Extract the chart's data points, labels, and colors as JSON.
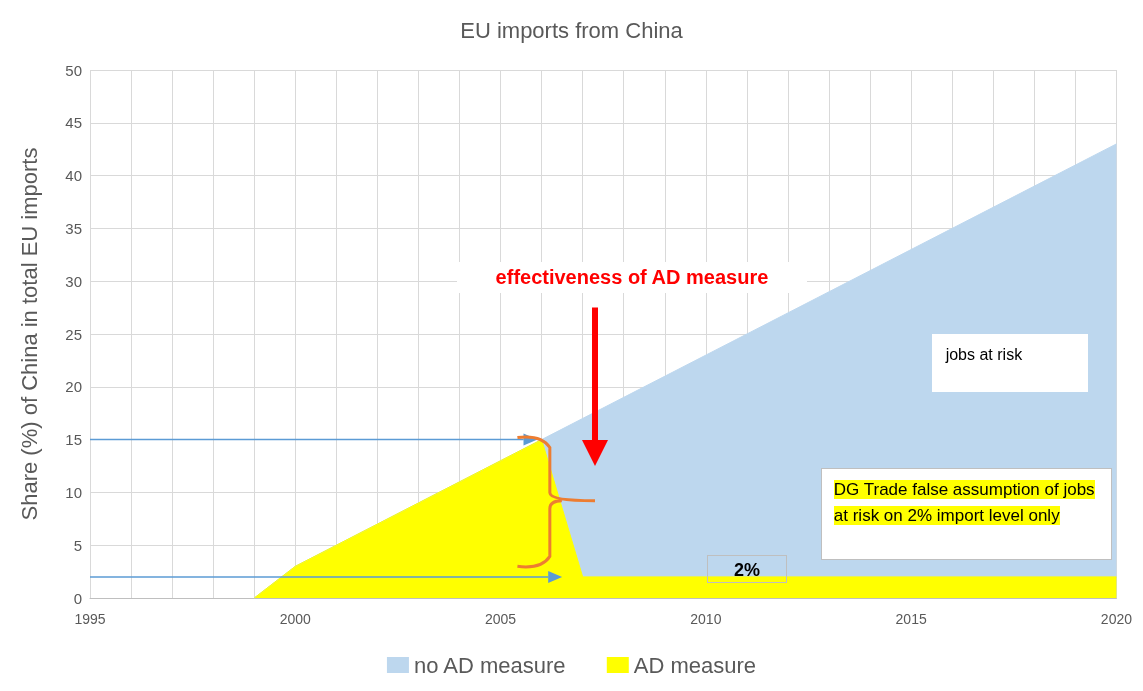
{
  "chart_data": {
    "type": "area",
    "title": "EU imports from China",
    "ylabel": "Share (%) of China in total EU imports",
    "xlim": [
      1995,
      2020
    ],
    "xticks": [
      1995,
      {
        "value": 1996,
        "label": null
      },
      {
        "value": 1997,
        "label": null
      },
      {
        "value": 1998,
        "label": null
      },
      {
        "value": 1999,
        "label": null
      },
      2000,
      {
        "value": 2001,
        "label": null
      },
      {
        "value": 2002,
        "label": null
      },
      {
        "value": 2003,
        "label": null
      },
      {
        "value": 2004,
        "label": null
      },
      2005,
      {
        "value": 2006,
        "label": null
      },
      {
        "value": 2007,
        "label": null
      },
      {
        "value": 2008,
        "label": null
      },
      {
        "value": 2009,
        "label": null
      },
      2010,
      {
        "value": 2011,
        "label": null
      },
      {
        "value": 2012,
        "label": null
      },
      {
        "value": 2013,
        "label": null
      },
      {
        "value": 2014,
        "label": null
      },
      2015,
      {
        "value": 2016,
        "label": null
      },
      {
        "value": 2017,
        "label": null
      },
      {
        "value": 2018,
        "label": null
      },
      {
        "value": 2019,
        "label": null
      },
      2020
    ],
    "ylim": [
      0,
      50
    ],
    "yticks": [
      0,
      5,
      10,
      15,
      20,
      25,
      30,
      35,
      40,
      45,
      50
    ],
    "series": [
      {
        "name": "no AD measure",
        "color": "#bdd7ee",
        "x": [
          1999,
          2000,
          2006,
          2020
        ],
        "values": [
          0,
          3,
          15,
          43
        ]
      },
      {
        "name": "AD measure",
        "color": "#ffff00",
        "x": [
          1999,
          2000,
          2006,
          2007,
          2020
        ],
        "values": [
          0,
          3,
          15,
          2,
          2
        ]
      }
    ],
    "annotations": [
      "effectiveness of AD measure",
      "jobs at risk",
      {
        "text": "2%",
        "x": 2011,
        "y": 2
      },
      "DG Trade false assumption of jobs at risk on 2% import level only"
    ],
    "grid": true,
    "legend": "bottom"
  }
}
